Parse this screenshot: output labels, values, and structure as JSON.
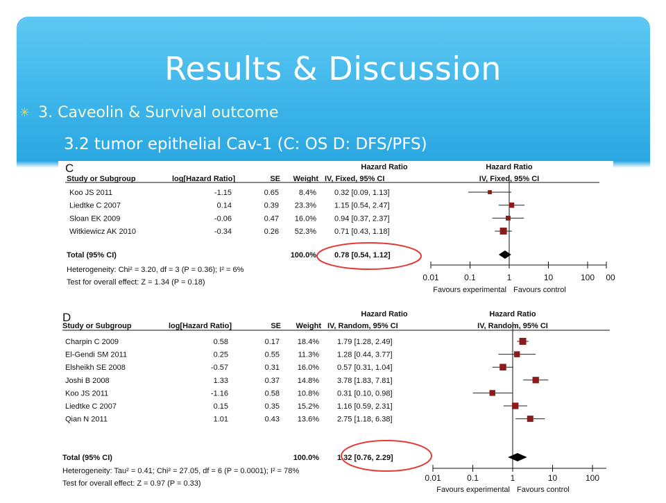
{
  "slide": {
    "title": "Results & Discussion",
    "bullet": "3. Caveolin & Survival outcome",
    "subtitle": "3.2 tumor epithelial Cav-1 (C: OS   D: DFS/PFS)",
    "colors": {
      "accent": "#2aa7e2",
      "bullet_marker": "#f7d24a",
      "highlight": "#e53935",
      "marker": "#8b1a1a"
    }
  },
  "chart_data": [
    {
      "type": "forest",
      "panel_label": "C",
      "col_headers": {
        "study": "Study or Subgroup",
        "log": "log[Hazard Ratio]",
        "se": "SE",
        "weight": "Weight",
        "hr_top": "Hazard Ratio",
        "hr_method": "IV, Fixed, 95% CI",
        "plot_top": "Hazard Ratio",
        "plot_method": "IV, Fixed, 95% CI"
      },
      "studies": [
        {
          "name": "Koo JS 2011",
          "log_hr": "-1.15",
          "se": "0.65",
          "weight": "8.4%",
          "ci_text": "0.32 [0.09, 1.13]",
          "hr": 0.32,
          "lo": 0.09,
          "hi": 1.13
        },
        {
          "name": "Liedtke C 2007",
          "log_hr": "0.14",
          "se": "0.39",
          "weight": "23.3%",
          "ci_text": "1.15 [0.54, 2.47]",
          "hr": 1.15,
          "lo": 0.54,
          "hi": 2.47
        },
        {
          "name": "Sloan EK 2009",
          "log_hr": "-0.06",
          "se": "0.47",
          "weight": "16.0%",
          "ci_text": "0.94 [0.37, 2.37]",
          "hr": 0.94,
          "lo": 0.37,
          "hi": 2.37
        },
        {
          "name": "Witkiewicz AK 2010",
          "log_hr": "-0.34",
          "se": "0.26",
          "weight": "52.3%",
          "ci_text": "0.71 [0.43, 1.18]",
          "hr": 0.71,
          "lo": 0.43,
          "hi": 1.18
        }
      ],
      "total": {
        "label": "Total (95% CI)",
        "weight": "100.0%",
        "ci_text": "0.78 [0.54, 1.12]",
        "hr": 0.78,
        "lo": 0.54,
        "hi": 1.12
      },
      "heterogeneity": "Heterogeneity: Chi² = 3.20, df = 3 (P = 0.36); I² = 6%",
      "overall_test": "Test for overall effect: Z = 1.34 (P = 0.18)",
      "x_scale": "log",
      "x_ticks": [
        "0.01",
        "0.1",
        "1",
        "10",
        "100"
      ],
      "x_ticks_values": [
        0.01,
        0.1,
        1,
        10,
        100
      ],
      "x_range": [
        0.01,
        100
      ],
      "axis_tail_label": "00",
      "favours_left": "Favours experimental",
      "favours_right": "Favours control",
      "highlighted": "total"
    },
    {
      "type": "forest",
      "panel_label": "D",
      "col_headers": {
        "study": "Study or Subgroup",
        "log": "log[Hazard Ratio]",
        "se": "SE",
        "weight": "Weight",
        "hr_top": "Hazard Ratio",
        "hr_method": "IV, Random, 95% CI",
        "plot_top": "Hazard Ratio",
        "plot_method": "IV, Random, 95% CI"
      },
      "studies": [
        {
          "name": "Charpin C 2009",
          "log_hr": "0.58",
          "se": "0.17",
          "weight": "18.4%",
          "ci_text": "1.79 [1.28, 2.49]",
          "hr": 1.79,
          "lo": 1.28,
          "hi": 2.49
        },
        {
          "name": "El-Gendi SM 2011",
          "log_hr": "0.25",
          "se": "0.55",
          "weight": "11.3%",
          "ci_text": "1.28 [0.44, 3.77]",
          "hr": 1.28,
          "lo": 0.44,
          "hi": 3.77
        },
        {
          "name": "Elsheikh SE 2008",
          "log_hr": "-0.57",
          "se": "0.31",
          "weight": "16.0%",
          "ci_text": "0.57 [0.31, 1.04]",
          "hr": 0.57,
          "lo": 0.31,
          "hi": 1.04
        },
        {
          "name": "Joshi B 2008",
          "log_hr": "1.33",
          "se": "0.37",
          "weight": "14.8%",
          "ci_text": "3.78 [1.83, 7.81]",
          "hr": 3.78,
          "lo": 1.83,
          "hi": 7.81
        },
        {
          "name": "Koo JS 2011",
          "log_hr": "-1.16",
          "se": "0.58",
          "weight": "10.8%",
          "ci_text": "0.31 [0.10, 0.98]",
          "hr": 0.31,
          "lo": 0.1,
          "hi": 0.98
        },
        {
          "name": "Liedtke C 2007",
          "log_hr": "0.15",
          "se": "0.35",
          "weight": "15.2%",
          "ci_text": "1.16 [0.59, 2.31]",
          "hr": 1.16,
          "lo": 0.59,
          "hi": 2.31
        },
        {
          "name": "Qian N 2011",
          "log_hr": "1.01",
          "se": "0.43",
          "weight": "13.6%",
          "ci_text": "2.75 [1.18, 6.38]",
          "hr": 2.75,
          "lo": 1.18,
          "hi": 6.38
        }
      ],
      "total": {
        "label": "Total (95% CI)",
        "weight": "100.0%",
        "ci_text": "1.32 [0.76, 2.29]",
        "hr": 1.32,
        "lo": 0.76,
        "hi": 2.29
      },
      "heterogeneity": "Heterogeneity: Tau² = 0.41; Chi² = 27.05, df = 6 (P = 0.0001); I² = 78%",
      "overall_test": "Test for overall effect: Z = 0.97 (P = 0.33)",
      "x_scale": "log",
      "x_ticks": [
        "0.01",
        "0.1",
        "1",
        "10",
        "100"
      ],
      "x_ticks_values": [
        0.01,
        0.1,
        1,
        10,
        100
      ],
      "x_range": [
        0.01,
        100
      ],
      "favours_left": "Favours experimental",
      "favours_right": "Favours control",
      "highlighted": "total"
    }
  ]
}
